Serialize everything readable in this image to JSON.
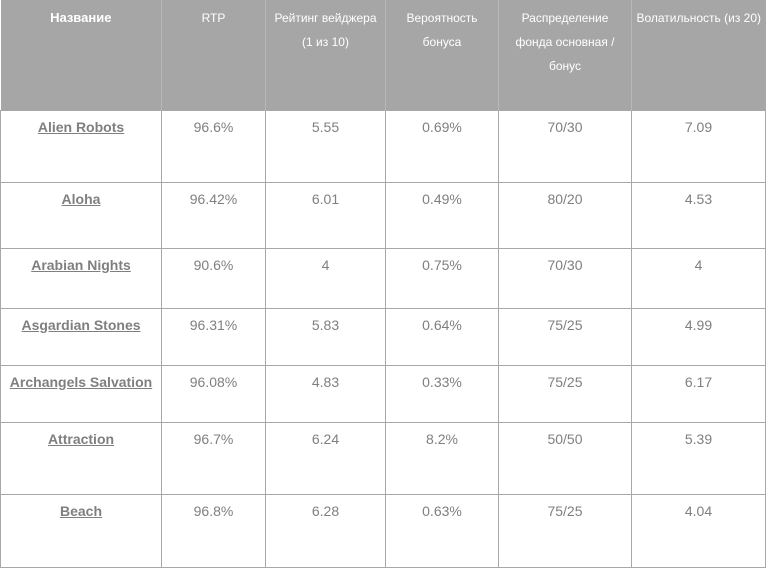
{
  "table": {
    "headers": [
      "Название",
      "RTP",
      "Рейтинг вейджера (1 из 10)",
      "Вероятность бонуса",
      "Распределение фонда основная / бонус",
      "Волатильность (из 20)"
    ],
    "rows": [
      {
        "name": "Alien Robots",
        "rtp": "96.6%",
        "wager": "5.55",
        "bonus": "0.69%",
        "fund": "70/30",
        "volatility": "7.09"
      },
      {
        "name": "Aloha",
        "rtp": "96.42%",
        "wager": "6.01",
        "bonus": "0.49%",
        "fund": "80/20",
        "volatility": "4.53"
      },
      {
        "name": "Arabian Nights",
        "rtp": "90.6%",
        "wager": "4",
        "bonus": "0.75%",
        "fund": "70/30",
        "volatility": "4"
      },
      {
        "name": "Asgardian Stones",
        "rtp": "96.31%",
        "wager": "5.83",
        "bonus": "0.64%",
        "fund": "75/25",
        "volatility": "4.99"
      },
      {
        "name": "Archangels Salvation",
        "rtp": "96.08%",
        "wager": "4.83",
        "bonus": "0.33%",
        "fund": "75/25",
        "volatility": "6.17"
      },
      {
        "name": "Attraction",
        "rtp": "96.7%",
        "wager": "6.24",
        "bonus": "8.2%",
        "fund": "50/50",
        "volatility": "5.39"
      },
      {
        "name": "Beach",
        "rtp": "96.8%",
        "wager": "6.28",
        "bonus": "0.63%",
        "fund": "75/25",
        "volatility": "4.04"
      }
    ]
  }
}
